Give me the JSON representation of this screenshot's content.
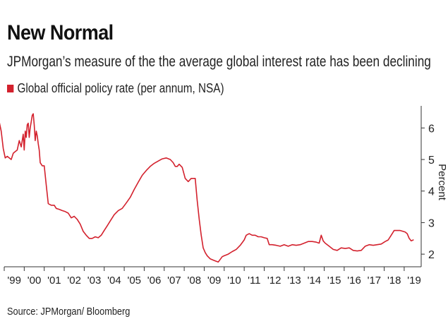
{
  "chart_data": {
    "type": "line",
    "title": "New Normal",
    "subtitle": "JPMorgan’s measure of the the average global interest rate has been declining",
    "legend": "Global official policy rate (per annum, NSA)",
    "ylabel": "Percent",
    "source": "Source: JPMorgan/ Bloomberg",
    "xlim": [
      1999.0,
      2019.85
    ],
    "ylim": [
      1.6,
      6.7
    ],
    "yticks": [
      2,
      3,
      4,
      5,
      6
    ],
    "xticks": [
      {
        "label": "'99",
        "year": 1999
      },
      {
        "label": "'00",
        "year": 2000
      },
      {
        "label": "'01",
        "year": 2001
      },
      {
        "label": "'02",
        "year": 2002
      },
      {
        "label": "'03",
        "year": 2003
      },
      {
        "label": "'04",
        "year": 2004
      },
      {
        "label": "'05",
        "year": 2005
      },
      {
        "label": "'06",
        "year": 2006
      },
      {
        "label": "'07",
        "year": 2007
      },
      {
        "label": "'08",
        "year": 2008
      },
      {
        "label": "'09",
        "year": 2009
      },
      {
        "label": "'10",
        "year": 2010
      },
      {
        "label": "'11",
        "year": 2011
      },
      {
        "label": "'12",
        "year": 2012
      },
      {
        "label": "'13",
        "year": 2013
      },
      {
        "label": "'14",
        "year": 2014
      },
      {
        "label": "'15",
        "year": 2015
      },
      {
        "label": "'16",
        "year": 2016
      },
      {
        "label": "'17",
        "year": 2017
      },
      {
        "label": "'18",
        "year": 2018
      },
      {
        "label": "'19",
        "year": 2019
      }
    ],
    "series": [
      {
        "name": "Global official policy rate (per annum, NSA)",
        "color": "#d3212d",
        "x": [
          1998.75,
          1998.85,
          1998.95,
          1999.05,
          1999.15,
          1999.25,
          1999.35,
          1999.45,
          1999.55,
          1999.65,
          1999.75,
          1999.85,
          1999.95,
          2000.0,
          2000.05,
          2000.1,
          2000.15,
          2000.2,
          2000.25,
          2000.3,
          2000.35,
          2000.4,
          2000.45,
          2000.5,
          2000.55,
          2000.6,
          2000.65,
          2000.7,
          2000.75,
          2000.8,
          2000.9,
          2001.0,
          2001.1,
          2001.2,
          2001.35,
          2001.5,
          2001.6,
          2001.75,
          2001.9,
          2002.05,
          2002.2,
          2002.35,
          2002.5,
          2002.65,
          2002.8,
          2002.95,
          2003.1,
          2003.25,
          2003.4,
          2003.55,
          2003.7,
          2003.85,
          2004.0,
          2004.15,
          2004.3,
          2004.5,
          2004.7,
          2004.9,
          2005.1,
          2005.3,
          2005.5,
          2005.7,
          2005.9,
          2006.1,
          2006.3,
          2006.5,
          2006.7,
          2006.9,
          2007.1,
          2007.3,
          2007.45,
          2007.55,
          2007.65,
          2007.75,
          2007.9,
          2008.05,
          2008.2,
          2008.35,
          2008.45,
          2008.55,
          2008.65,
          2008.75,
          2008.85,
          2008.95,
          2009.05,
          2009.15,
          2009.3,
          2009.5,
          2009.7,
          2009.9,
          2010.0,
          2010.2,
          2010.4,
          2010.6,
          2010.8,
          2011.0,
          2011.1,
          2011.25,
          2011.4,
          2011.55,
          2011.7,
          2011.85,
          2012.0,
          2012.15,
          2012.25,
          2012.4,
          2012.6,
          2012.8,
          2013.0,
          2013.2,
          2013.4,
          2013.6,
          2013.8,
          2014.0,
          2014.2,
          2014.4,
          2014.6,
          2014.75,
          2014.85,
          2014.95,
          2015.05,
          2015.25,
          2015.45,
          2015.65,
          2015.85,
          2016.05,
          2016.25,
          2016.45,
          2016.65,
          2016.85,
          2017.05,
          2017.25,
          2017.45,
          2017.65,
          2017.85,
          2018.05,
          2018.2,
          2018.35,
          2018.5,
          2018.65,
          2018.8,
          2018.95,
          2019.05,
          2019.15,
          2019.25,
          2019.35,
          2019.45
        ],
        "values": [
          6.2,
          5.9,
          5.35,
          5.05,
          5.1,
          5.05,
          5.0,
          5.2,
          5.25,
          5.3,
          5.6,
          5.4,
          5.8,
          5.3,
          5.9,
          5.7,
          6.1,
          6.15,
          5.7,
          6.0,
          6.2,
          6.4,
          6.45,
          6.1,
          5.6,
          5.9,
          5.75,
          5.5,
          5.3,
          4.9,
          4.8,
          4.8,
          4.2,
          3.6,
          3.55,
          3.55,
          3.45,
          3.42,
          3.38,
          3.35,
          3.3,
          3.15,
          3.2,
          3.1,
          2.95,
          2.72,
          2.6,
          2.5,
          2.5,
          2.55,
          2.52,
          2.6,
          2.75,
          2.9,
          3.05,
          3.25,
          3.38,
          3.45,
          3.62,
          3.8,
          4.05,
          4.28,
          4.5,
          4.65,
          4.78,
          4.88,
          4.95,
          5.02,
          5.05,
          5.0,
          4.9,
          4.78,
          4.78,
          4.85,
          4.75,
          4.4,
          4.3,
          4.4,
          4.4,
          4.4,
          3.7,
          3.1,
          2.6,
          2.2,
          2.05,
          1.95,
          1.85,
          1.8,
          1.75,
          1.92,
          1.95,
          2.0,
          2.08,
          2.15,
          2.28,
          2.45,
          2.6,
          2.65,
          2.6,
          2.6,
          2.55,
          2.55,
          2.52,
          2.5,
          2.3,
          2.3,
          2.28,
          2.25,
          2.3,
          2.25,
          2.3,
          2.28,
          2.3,
          2.35,
          2.4,
          2.4,
          2.38,
          2.35,
          2.6,
          2.42,
          2.35,
          2.25,
          2.15,
          2.12,
          2.2,
          2.18,
          2.2,
          2.12,
          2.1,
          2.12,
          2.25,
          2.3,
          2.28,
          2.3,
          2.32,
          2.4,
          2.45,
          2.6,
          2.75,
          2.75,
          2.75,
          2.72,
          2.7,
          2.65,
          2.5,
          2.42,
          2.45
        ]
      }
    ]
  }
}
